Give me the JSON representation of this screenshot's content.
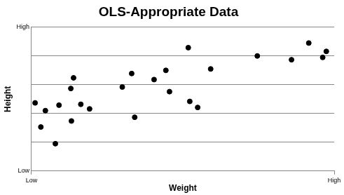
{
  "chart_data": {
    "type": "scatter",
    "title": "OLS-Appropriate Data",
    "x_label": "Weight",
    "y_label": "Height",
    "x": [
      0.12,
      0.31,
      0.46,
      0.79,
      0.91,
      1.3,
      1.32,
      1.39,
      1.63,
      1.92,
      3.0,
      3.31,
      3.41,
      4.05,
      4.44,
      4.56,
      5.18,
      5.23,
      5.49,
      5.92,
      7.46,
      8.59,
      9.16,
      9.62,
      9.74
    ],
    "values": [
      2.37,
      1.53,
      2.1,
      0.95,
      2.29,
      2.87,
      1.74,
      3.24,
      2.32,
      2.16,
      2.92,
      3.39,
      1.87,
      3.18,
      3.5,
      2.76,
      4.29,
      2.42,
      2.21,
      3.55,
      4.0,
      3.87,
      4.45,
      3.95,
      4.16
    ],
    "color": "#000000",
    "marker": "circle",
    "xlim": [
      0,
      10
    ],
    "xticks": [
      {
        "value": 0,
        "label": "Low"
      },
      {
        "value": 10,
        "label": "High"
      }
    ],
    "ylim": [
      0,
      5
    ],
    "yticks": [
      {
        "value": 0,
        "label": "Low"
      },
      {
        "value": 1,
        "label": null
      },
      {
        "value": 2,
        "label": null
      },
      {
        "value": 3,
        "label": null
      },
      {
        "value": 4,
        "label": null
      },
      {
        "value": 5,
        "label": "High"
      }
    ],
    "grid": true,
    "legend": false
  }
}
